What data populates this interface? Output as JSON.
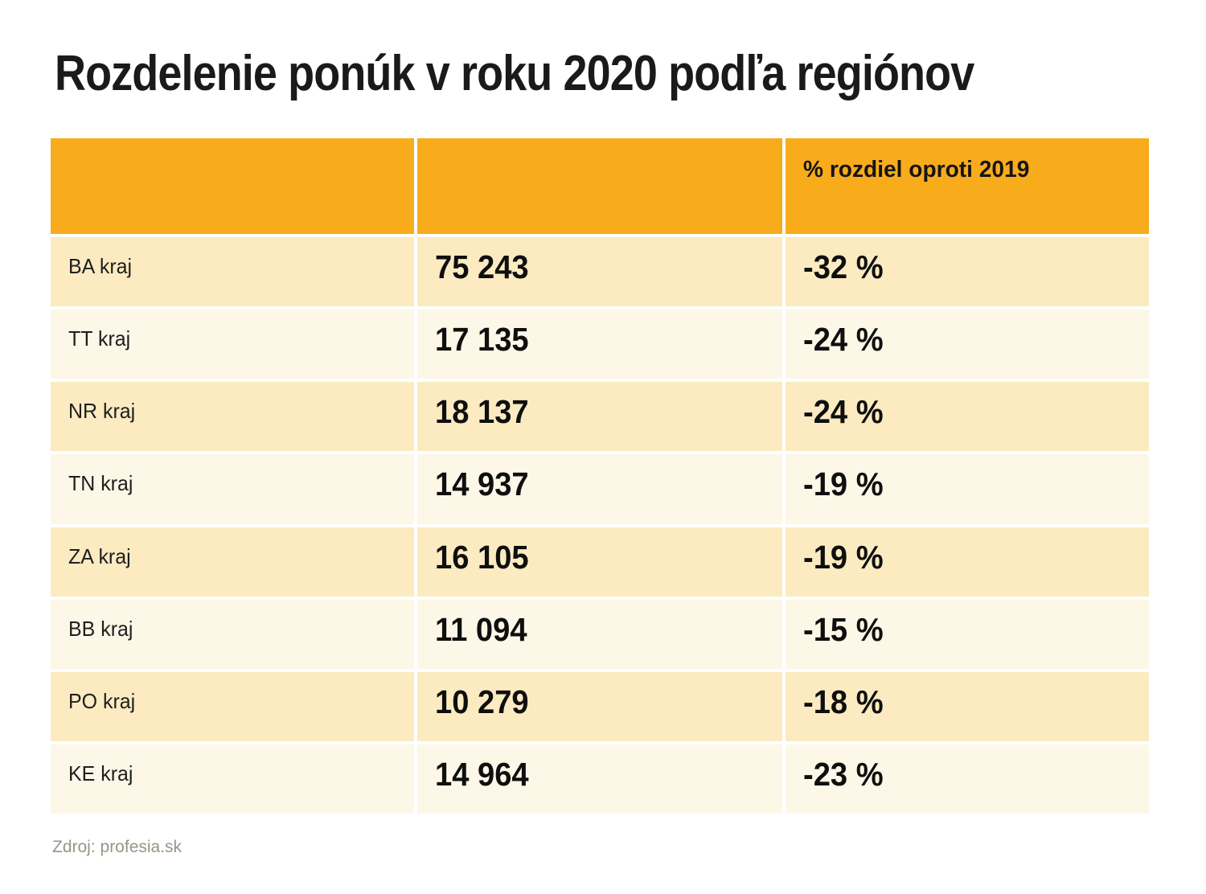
{
  "page": {
    "title": "Rozdelenie ponúk v roku 2020 podľa regiónov",
    "source": "Zdroj: profesia.sk"
  },
  "colors": {
    "header_bg": "#F8AC1C",
    "row_dark_bg": "#FCEBC1",
    "row_light_bg": "#FDF7E7",
    "title_text": "#1a1a1a",
    "source_text": "#9B9386"
  },
  "table": {
    "headers": [
      "",
      "",
      "% rozdiel oproti 2019"
    ],
    "rows": [
      {
        "region": "BA kraj",
        "offers": "75 243",
        "diff": "-32 %"
      },
      {
        "region": "TT kraj",
        "offers": "17 135",
        "diff": "-24 %"
      },
      {
        "region": "NR kraj",
        "offers": "18 137",
        "diff": "-24 %"
      },
      {
        "region": "TN kraj",
        "offers": "14 937",
        "diff": "-19 %"
      },
      {
        "region": "ZA kraj",
        "offers": "16 105",
        "diff": "-19 %"
      },
      {
        "region": "BB kraj",
        "offers": "11 094",
        "diff": "-15 %"
      },
      {
        "region": "PO kraj",
        "offers": "10 279",
        "diff": "-18 %"
      },
      {
        "region": "KE kraj",
        "offers": "14 964",
        "diff": "-23 %"
      }
    ]
  },
  "chart_data": {
    "type": "table",
    "title": "Rozdelenie ponúk v roku 2020 podľa regiónov",
    "columns": [
      "",
      "",
      "% rozdiel oproti 2019"
    ],
    "categories": [
      "BA kraj",
      "TT kraj",
      "NR kraj",
      "TN kraj",
      "ZA kraj",
      "BB kraj",
      "PO kraj",
      "KE kraj"
    ],
    "series": [
      {
        "name": "",
        "values": [
          75243,
          17135,
          18137,
          14937,
          16105,
          11094,
          10279,
          14964
        ]
      },
      {
        "name": "% rozdiel oproti 2019",
        "values": [
          -32,
          -24,
          -24,
          -19,
          -19,
          -15,
          -18,
          -23
        ]
      }
    ],
    "source": "Zdroj: profesia.sk"
  }
}
